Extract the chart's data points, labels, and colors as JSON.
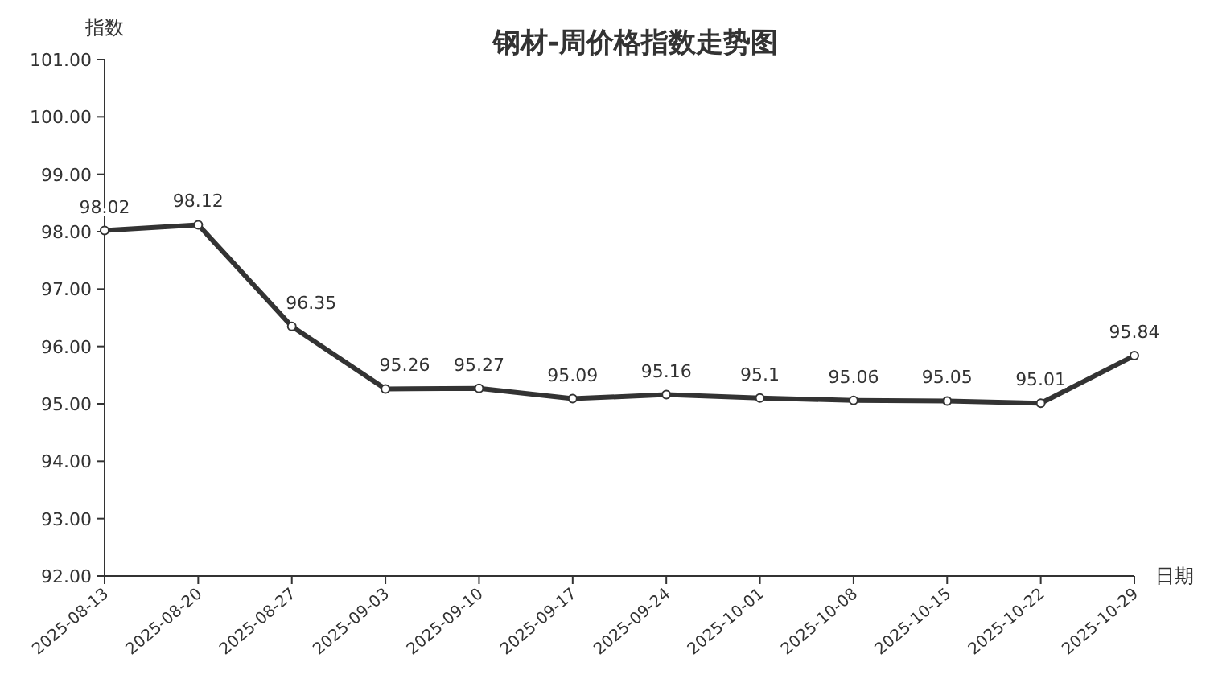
{
  "chart_data": {
    "type": "line",
    "title": "钢材-周价格指数走势图",
    "ylabel": "指数",
    "xlabel": "日期",
    "categories": [
      "2025-08-13",
      "2025-08-20",
      "2025-08-27",
      "2025-09-03",
      "2025-09-10",
      "2025-09-17",
      "2025-09-24",
      "2025-10-01",
      "2025-10-08",
      "2025-10-15",
      "2025-10-22",
      "2025-10-29"
    ],
    "values": [
      98.02,
      98.12,
      96.35,
      95.26,
      95.27,
      95.09,
      95.16,
      95.1,
      95.06,
      95.05,
      95.01,
      95.84
    ],
    "color": "#333333",
    "marker": "circle",
    "line_style": "solid",
    "data_labels": true,
    "ylim": [
      92,
      101
    ],
    "yticks": [
      {
        "value": 92,
        "label": "92.00"
      },
      {
        "value": 93,
        "label": "93.00"
      },
      {
        "value": 94,
        "label": "94.00"
      },
      {
        "value": 95,
        "label": "95.00"
      },
      {
        "value": 96,
        "label": "96.00"
      },
      {
        "value": 97,
        "label": "97.00"
      },
      {
        "value": 98,
        "label": "98.00"
      },
      {
        "value": 99,
        "label": "99.00"
      },
      {
        "value": 100,
        "label": "100.00"
      },
      {
        "value": 101,
        "label": "101.00"
      }
    ]
  }
}
